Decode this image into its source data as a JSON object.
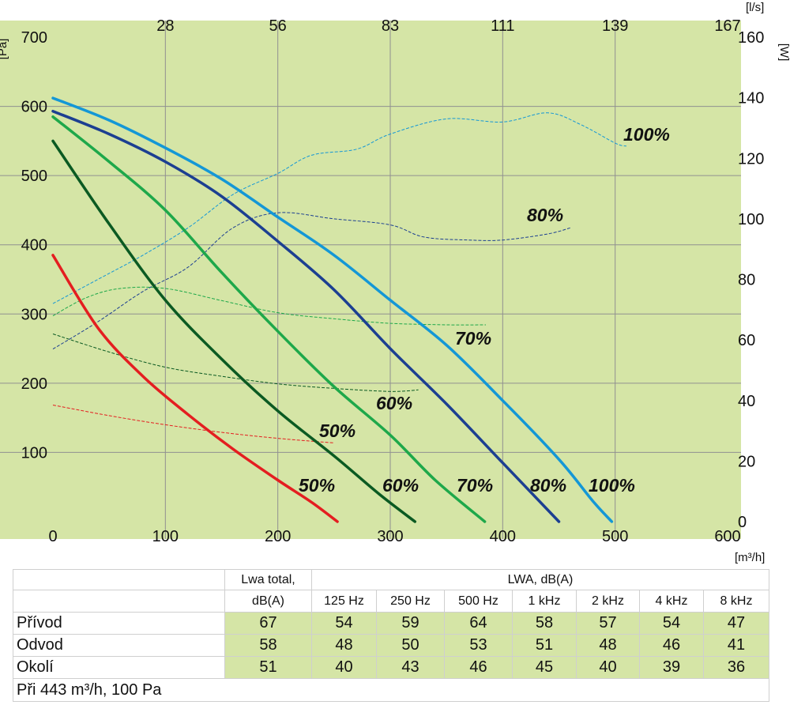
{
  "chart_data": {
    "type": "line",
    "x_axis": {
      "ticks": [
        0,
        100,
        200,
        300,
        400,
        500,
        600
      ],
      "unit": "[m³/h]",
      "range": [
        0,
        600
      ]
    },
    "top_axis": {
      "ticks": [
        "28",
        "56",
        "83",
        "111",
        "139",
        "167"
      ],
      "unit": "[l/s]"
    },
    "y_left": {
      "ticks": [
        100,
        200,
        300,
        400,
        500,
        600,
        700
      ],
      "unit": "[Pa]",
      "range": [
        0,
        700
      ]
    },
    "y_right": {
      "ticks": [
        0,
        20,
        40,
        60,
        80,
        100,
        120,
        140,
        160
      ],
      "unit": "[W]",
      "range": [
        0,
        160
      ]
    },
    "colors": {
      "background": "#d5e5a6",
      "grid": "#909090",
      "50": "#e41e20",
      "60": "#0b5a22",
      "70": "#1ea84a",
      "80": "#1c3f91",
      "100": "#1497d6"
    },
    "pressure_curves": [
      {
        "name": "50%",
        "color_key": "50",
        "label": "50%",
        "points": [
          [
            0,
            385
          ],
          [
            40,
            280
          ],
          [
            80,
            210
          ],
          [
            120,
            155
          ],
          [
            160,
            105
          ],
          [
            200,
            60
          ],
          [
            230,
            28
          ],
          [
            253,
            0
          ]
        ]
      },
      {
        "name": "60%",
        "color_key": "60",
        "label": "60%",
        "points": [
          [
            0,
            550
          ],
          [
            50,
            430
          ],
          [
            100,
            320
          ],
          [
            150,
            235
          ],
          [
            200,
            160
          ],
          [
            250,
            95
          ],
          [
            290,
            40
          ],
          [
            322,
            0
          ]
        ]
      },
      {
        "name": "70%",
        "color_key": "70",
        "label": "70%",
        "points": [
          [
            0,
            585
          ],
          [
            50,
            520
          ],
          [
            100,
            450
          ],
          [
            150,
            360
          ],
          [
            200,
            275
          ],
          [
            250,
            195
          ],
          [
            300,
            125
          ],
          [
            340,
            60
          ],
          [
            384,
            0
          ]
        ]
      },
      {
        "name": "80%",
        "color_key": "80",
        "label": "80%",
        "points": [
          [
            0,
            593
          ],
          [
            50,
            560
          ],
          [
            100,
            520
          ],
          [
            150,
            470
          ],
          [
            200,
            405
          ],
          [
            250,
            335
          ],
          [
            300,
            250
          ],
          [
            350,
            170
          ],
          [
            400,
            85
          ],
          [
            450,
            0
          ]
        ]
      },
      {
        "name": "100%",
        "color_key": "100",
        "label": "100%",
        "points": [
          [
            0,
            612
          ],
          [
            50,
            580
          ],
          [
            100,
            540
          ],
          [
            150,
            495
          ],
          [
            200,
            440
          ],
          [
            250,
            385
          ],
          [
            300,
            320
          ],
          [
            350,
            255
          ],
          [
            400,
            175
          ],
          [
            450,
            90
          ],
          [
            480,
            30
          ],
          [
            497,
            0
          ]
        ]
      }
    ],
    "power_curves": [
      {
        "name": "50%",
        "color_key": "50",
        "label": "50%",
        "label_axis": "pressure",
        "points": [
          [
            0,
            38.5
          ],
          [
            50,
            35
          ],
          [
            100,
            32
          ],
          [
            150,
            29.5
          ],
          [
            200,
            27.5
          ],
          [
            250,
            26
          ]
        ]
      },
      {
        "name": "60%",
        "color_key": "60",
        "label": "60%",
        "label_axis": "pressure",
        "points": [
          [
            0,
            62
          ],
          [
            50,
            56
          ],
          [
            100,
            51
          ],
          [
            150,
            48
          ],
          [
            200,
            45.5
          ],
          [
            250,
            44
          ],
          [
            300,
            43
          ],
          [
            325,
            43.5
          ]
        ]
      },
      {
        "name": "70%",
        "color_key": "70",
        "label": "70%",
        "label_axis": "pressure",
        "points": [
          [
            0,
            68
          ],
          [
            30,
            74
          ],
          [
            60,
            77
          ],
          [
            100,
            77
          ],
          [
            150,
            73
          ],
          [
            200,
            69
          ],
          [
            250,
            67
          ],
          [
            300,
            65.5
          ],
          [
            350,
            65
          ],
          [
            385,
            65
          ]
        ]
      },
      {
        "name": "80%",
        "color_key": "80",
        "label": "80%",
        "label_axis": "power",
        "points": [
          [
            0,
            57
          ],
          [
            40,
            66
          ],
          [
            80,
            76
          ],
          [
            120,
            84
          ],
          [
            160,
            97
          ],
          [
            200,
            102
          ],
          [
            250,
            100
          ],
          [
            300,
            98
          ],
          [
            330,
            94
          ],
          [
            370,
            93
          ],
          [
            400,
            93
          ],
          [
            440,
            95
          ],
          [
            460,
            97
          ]
        ]
      },
      {
        "name": "100%",
        "color_key": "100",
        "label": "100%",
        "label_axis": "power",
        "points": [
          [
            0,
            72
          ],
          [
            40,
            80
          ],
          [
            80,
            88
          ],
          [
            120,
            97
          ],
          [
            160,
            108
          ],
          [
            200,
            115
          ],
          [
            230,
            121
          ],
          [
            270,
            123
          ],
          [
            300,
            128
          ],
          [
            350,
            133
          ],
          [
            400,
            132
          ],
          [
            440,
            135
          ],
          [
            470,
            131
          ],
          [
            500,
            125
          ],
          [
            510,
            124
          ]
        ]
      }
    ]
  },
  "table": {
    "header_total": "Lwa total,",
    "header_total_unit": "dB(A)",
    "header_lwa": "LWA, dB(A)",
    "bands": [
      "125 Hz",
      "250 Hz",
      "500 Hz",
      "1 kHz",
      "2 kHz",
      "4 kHz",
      "8 kHz"
    ],
    "rows": [
      {
        "name": "Přívod",
        "total": "67",
        "values": [
          "54",
          "59",
          "64",
          "58",
          "57",
          "54",
          "47"
        ]
      },
      {
        "name": "Odvod",
        "total": "58",
        "values": [
          "48",
          "50",
          "53",
          "51",
          "48",
          "46",
          "41"
        ]
      },
      {
        "name": "Okolí",
        "total": "51",
        "values": [
          "40",
          "43",
          "46",
          "45",
          "40",
          "39",
          "36"
        ]
      }
    ],
    "note": "Při 443 m³/h, 100 Pa"
  }
}
